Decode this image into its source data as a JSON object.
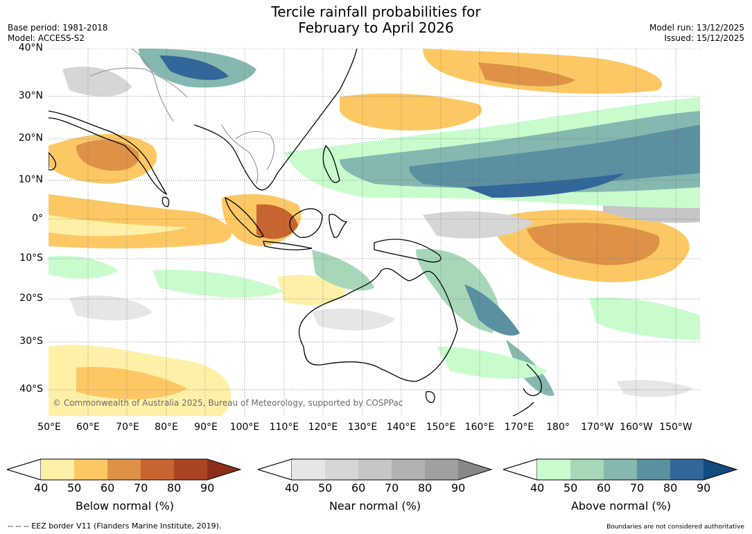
{
  "header": {
    "title_line1": "Tercile rainfall probabilities for",
    "title_line2": "February to April 2026",
    "base_period": "Base period: 1981-2018",
    "model": "Model: ACCESS-S2",
    "model_run": "Model run: 13/12/2025",
    "issued": "Issued: 15/12/2025"
  },
  "map": {
    "lat_labels": [
      "40°N",
      "30°N",
      "20°N",
      "10°N",
      "0°",
      "10°S",
      "20°S",
      "30°S",
      "40°S"
    ],
    "lon_labels": [
      "50°E",
      "60°E",
      "70°E",
      "80°E",
      "90°E",
      "100°E",
      "110°E",
      "120°E",
      "130°E",
      "140°E",
      "150°E",
      "160°E",
      "170°E",
      "180°",
      "170°W",
      "160°W",
      "150°W"
    ],
    "copyright": "© Commonwealth of Australia 2025, Bureau of Meteorology, supported by COSPPac"
  },
  "colorbars": [
    {
      "label": "Below normal (%)",
      "ticks": [
        "40",
        "50",
        "60",
        "70",
        "80",
        "90"
      ],
      "colors": [
        "#fff0a8",
        "#fdc864",
        "#de9248",
        "#c86430",
        "#aa4422",
        "#8c2f1a"
      ]
    },
    {
      "label": "Near normal (%)",
      "ticks": [
        "40",
        "50",
        "60",
        "70",
        "80",
        "90"
      ],
      "colors": [
        "#e6e6e6",
        "#d6d6d6",
        "#c6c6c6",
        "#b2b2b2",
        "#a0a0a0",
        "#888888"
      ]
    },
    {
      "label": "Above normal (%)",
      "ticks": [
        "40",
        "50",
        "60",
        "70",
        "80",
        "90"
      ],
      "colors": [
        "#c8fccc",
        "#a6d8b8",
        "#84b8b0",
        "#5a90a0",
        "#336699",
        "#134a80"
      ]
    }
  ],
  "footer": {
    "eez": "--  --  -- EEZ border V11 (Flanders Marine Institute, 2019).",
    "disclaimer": "Boundaries are not considered authoritative"
  }
}
